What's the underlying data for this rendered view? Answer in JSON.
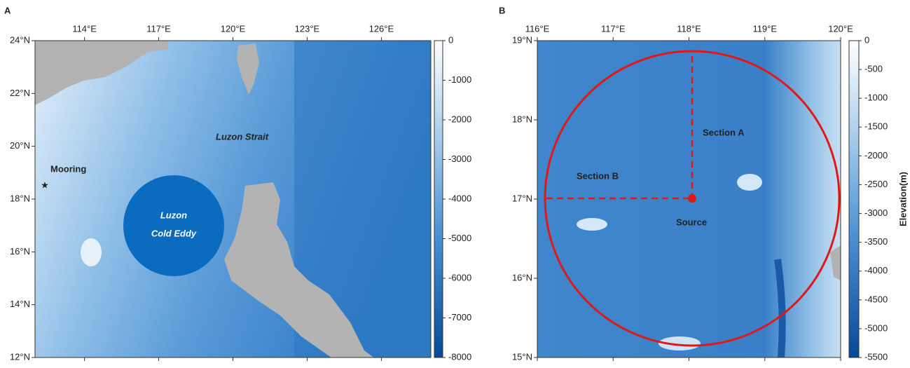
{
  "panels": [
    {
      "label": "A",
      "xlim": [
        112,
        128
      ],
      "ylim": [
        12,
        24
      ],
      "xticks": [
        {
          "value": 114,
          "label": "114°E"
        },
        {
          "value": 117,
          "label": "117°E"
        },
        {
          "value": 120,
          "label": "120°E"
        },
        {
          "value": 123,
          "label": "123°E"
        },
        {
          "value": 126,
          "label": "126°E"
        }
      ],
      "yticks": [
        {
          "value": 12,
          "label": "12°N"
        },
        {
          "value": 14,
          "label": "14°N"
        },
        {
          "value": 16,
          "label": "16°N"
        },
        {
          "value": 18,
          "label": "18°N"
        },
        {
          "value": 20,
          "label": "20°N"
        },
        {
          "value": 22,
          "label": "22°N"
        },
        {
          "value": 24,
          "label": "24°N"
        }
      ],
      "colorbar": {
        "lim": [
          0,
          -8000
        ],
        "ticks": [
          0,
          -1000,
          -2000,
          -3000,
          -4000,
          -5000,
          -6000,
          -7000,
          -8000
        ]
      },
      "annotations": {
        "mooring": "Mooring",
        "eddy": [
          "Luzon",
          "Cold Eddy"
        ],
        "strait": "Luzon Strait"
      }
    },
    {
      "label": "B",
      "xlim": [
        116,
        120
      ],
      "ylim": [
        15,
        19
      ],
      "xticks": [
        {
          "value": 116,
          "label": "116°E"
        },
        {
          "value": 117,
          "label": "117°E"
        },
        {
          "value": 118,
          "label": "118°E"
        },
        {
          "value": 119,
          "label": "119°E"
        },
        {
          "value": 120,
          "label": "120°E"
        }
      ],
      "yticks": [
        {
          "value": 15,
          "label": "15°N"
        },
        {
          "value": 16,
          "label": "16°N"
        },
        {
          "value": 17,
          "label": "17°N"
        },
        {
          "value": 18,
          "label": "18°N"
        },
        {
          "value": 19,
          "label": "19°N"
        }
      ],
      "colorbar": {
        "lim": [
          0,
          -5500
        ],
        "label": "Elevation(m)",
        "ticks": [
          0,
          -500,
          -1000,
          -1500,
          -2000,
          -2500,
          -3000,
          -3500,
          -4000,
          -4500,
          -5000,
          -5500
        ]
      },
      "annotations": {
        "section_a": "Section A",
        "section_b": "Section B",
        "source": "Source"
      }
    }
  ]
}
